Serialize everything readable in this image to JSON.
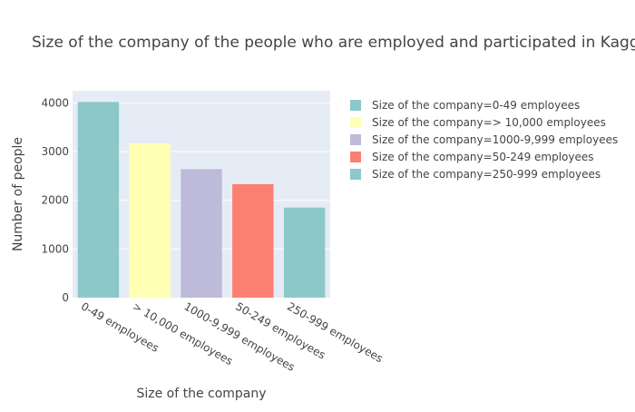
{
  "chart_data": {
    "type": "bar",
    "title": "Size of the company of the people who are employed and participated in Kaggle survey",
    "xlabel": "Size of the company",
    "ylabel": "Number of people",
    "ylim": [
      0,
      4250
    ],
    "yticks": [
      0,
      1000,
      2000,
      3000,
      4000
    ],
    "grid": true,
    "legend_position": "right",
    "categories": [
      "0-49 employees",
      "> 10,000 employees",
      "1000-9,999 employees",
      "50-249 employees",
      "250-999 employees"
    ],
    "series": [
      {
        "name": "Size of the company=0-49 employees",
        "category": "0-49 employees",
        "value": 4020,
        "color": "#8dc8c9"
      },
      {
        "name": "Size of the company=> 10,000 employees",
        "category": "> 10,000 employees",
        "value": 3170,
        "color": "#ffffb3"
      },
      {
        "name": "Size of the company=1000-9,999 employees",
        "category": "1000-9,999 employees",
        "value": 2640,
        "color": "#bebada"
      },
      {
        "name": "Size of the company=50-249 employees",
        "category": "50-249 employees",
        "value": 2330,
        "color": "#fb8072"
      },
      {
        "name": "Size of the company=250-999 employees",
        "category": "250-999 employees",
        "value": 1850,
        "color": "#8dc8c9"
      }
    ]
  }
}
